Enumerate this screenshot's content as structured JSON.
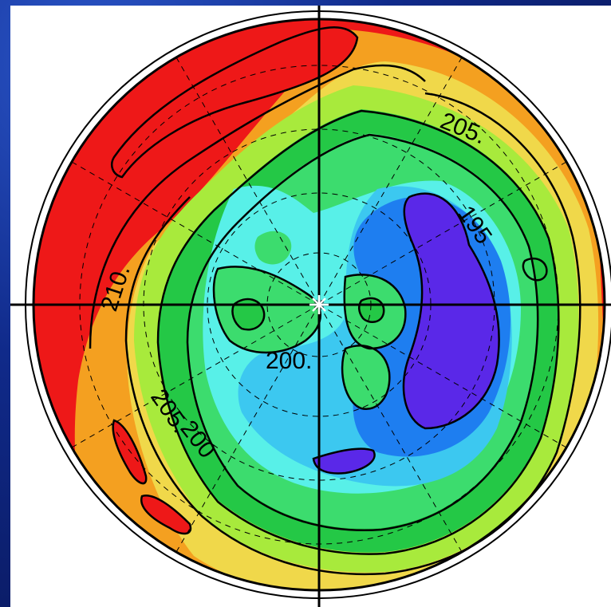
{
  "map": {
    "projection": "polar",
    "contour_labels": [
      "205.",
      "195",
      "210.",
      "200.",
      "205.",
      "200"
    ]
  },
  "colors": {
    "background": "#0b1e6e",
    "panel": "#ffffff",
    "levels": [
      "#5a28e8",
      "#1e7ef0",
      "#3cc8f0",
      "#58f0e8",
      "#3cdc6e",
      "#24c846",
      "#a8ea3c",
      "#f0d84a",
      "#f4a020",
      "#ee1818"
    ]
  }
}
